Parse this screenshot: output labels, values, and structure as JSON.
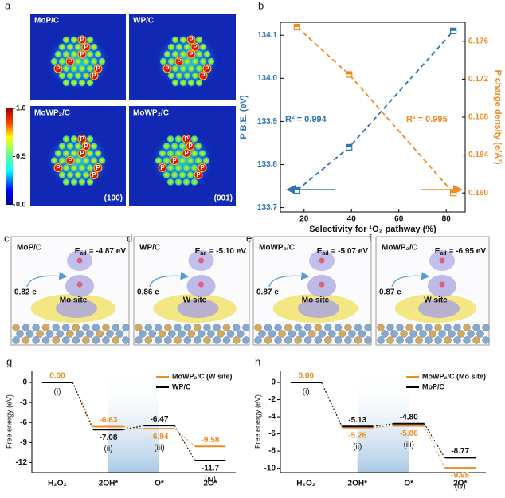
{
  "panel_a": {
    "label": "a",
    "atom_label": "P",
    "maps": [
      {
        "title": "MoP/C"
      },
      {
        "title": "WP/C"
      },
      {
        "title": "MoWP₂/C",
        "facet": "(100)"
      },
      {
        "title": "MoWP₂/C",
        "facet": "(001)"
      }
    ],
    "colorbar": {
      "ticks": [
        {
          "value": 1,
          "label": "1.0"
        },
        {
          "value": 0.5,
          "label": "0.5"
        },
        {
          "value": 0,
          "label": "0.0"
        }
      ]
    }
  },
  "structures": [
    {
      "label": "c",
      "title": "MoP/C",
      "energy_symbol": "E",
      "energy_subscript": "ad",
      "energy": "= -4.87 eV",
      "charge": "0.82 e",
      "site": "Mo site"
    },
    {
      "label": "d",
      "title": "WP/C",
      "energy_symbol": "E",
      "energy_subscript": "ad",
      "energy": "= -5.10 eV",
      "charge": "0.86 e",
      "site": "W site"
    },
    {
      "label": "e",
      "title": "MoWP₂/C",
      "energy_symbol": "E",
      "energy_subscript": "ad",
      "energy": "= -5.07 eV",
      "charge": "0.87 e",
      "site": "Mo site"
    },
    {
      "label": "f",
      "title": "MoWP₂/C",
      "energy_symbol": "E",
      "energy_subscript": "ad",
      "energy": "= -6.95 eV",
      "charge": "0.87 e",
      "site": "W site"
    }
  ],
  "chart_data": [
    {
      "type": "scatter",
      "panel_label": "b",
      "x_label": "Selectivity for ¹O₂ pathway (%)",
      "y_label": "P B.E. (eV)",
      "y2_label": "P charge density (e/Å³)",
      "x": [
        17,
        39,
        83
      ],
      "xlim": [
        10,
        88
      ],
      "xticks": [
        20,
        40,
        60,
        80
      ],
      "ylim": [
        133.69,
        134.13
      ],
      "yticks": [
        133.7,
        133.8,
        133.9,
        {
          "value": 134.0,
          "label": "134.0"
        },
        134.1
      ],
      "y2lim": [
        0.158,
        0.178
      ],
      "y2ticks": [
        {
          "value": 0.16,
          "label": "0.160"
        },
        {
          "value": 0.164,
          "label": "0.164"
        },
        {
          "value": 0.168,
          "label": "0.168"
        },
        {
          "value": 0.172,
          "label": "0.172"
        },
        {
          "value": 0.176,
          "label": "0.176"
        }
      ],
      "annotations": [
        "R² = 0.994",
        "R² = 0.995"
      ],
      "series": [
        {
          "color": "#2e75b6",
          "values": [
            133.74,
            133.84,
            134.11
          ]
        },
        {
          "color": "#f08a24",
          "axis": "y2",
          "values": [
            0.1775,
            0.1725,
            0.16
          ]
        }
      ]
    },
    {
      "type": "energy-level",
      "panel_label": "g",
      "y_label": "Free energy (eV)",
      "categories": [
        "H₂O₂",
        "2OH*",
        "O*",
        "2O*"
      ],
      "step_labels": [
        "(i)",
        "(ii)",
        "(iii)",
        "(iv)"
      ],
      "ylim": [
        -13.5,
        1.8
      ],
      "yticks": [
        0,
        -3,
        -6,
        -9,
        -12
      ],
      "legend": "upper right",
      "series": [
        {
          "name": "MoWP₂/C (W site)",
          "color": "#f08a24",
          "values": [
            0,
            -6.63,
            -6.94,
            -9.58
          ],
          "value_labels": [
            "0.00",
            "-6.63",
            "-6.94",
            "-9.58"
          ]
        },
        {
          "name": "WP/C",
          "color": "#000000",
          "values": [
            0,
            -7.08,
            -6.47,
            -11.7
          ],
          "value_labels": [
            null,
            "-7.08",
            "-6.47",
            "-11.7"
          ]
        }
      ]
    },
    {
      "type": "energy-level",
      "panel_label": "h",
      "y_label": "Free energy (eV)",
      "categories": [
        "H₂O₂",
        "2OH*",
        "O*",
        "2O*"
      ],
      "step_labels": [
        "(i)",
        "(ii)",
        "(iii)",
        "(iv)"
      ],
      "ylim": [
        -10.5,
        1.4
      ],
      "yticks": [
        0,
        -2,
        -4,
        -6,
        -8,
        -10
      ],
      "legend": "upper right",
      "series": [
        {
          "name": "MoWP₂/C (Mo site)",
          "color": "#f08a24",
          "values": [
            0,
            -5.26,
            -5.06,
            -9.95
          ],
          "value_labels": [
            "0.00",
            "-5.26",
            "-5.06",
            "-9.95"
          ]
        },
        {
          "name": "MoP/C",
          "color": "#000000",
          "values": [
            0,
            -5.13,
            -4.8,
            -8.77
          ],
          "value_labels": [
            null,
            "-5.13",
            "-4.80",
            "-8.77"
          ]
        }
      ]
    }
  ]
}
